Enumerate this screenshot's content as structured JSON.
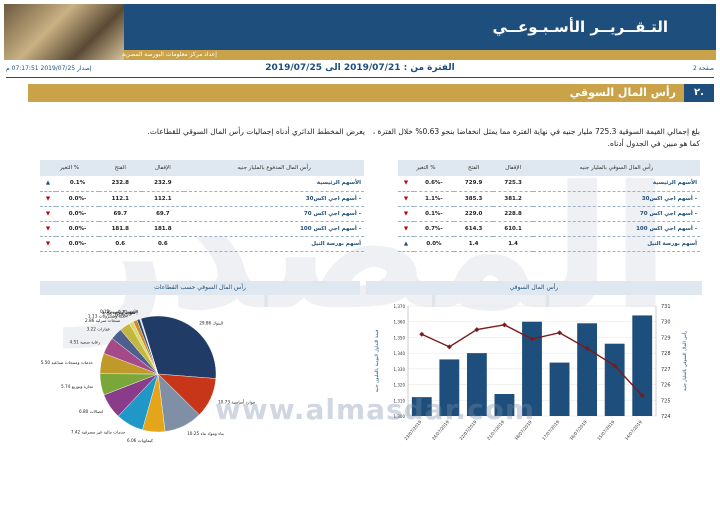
{
  "header": {
    "title": "التـقــريــر الأسـبـوعــي",
    "producer": "إعداد مركز معلومات البورصة المصرية"
  },
  "meta": {
    "issue": "إصدار 2019/07/25 07:17:51 م",
    "period": "الفترة من : 2019/07/21 الى 2019/07/25",
    "page": "صفحة 2"
  },
  "section": {
    "number": "٢.",
    "title": "رأس المال السوقي"
  },
  "paragraphs": {
    "right": "بلغ إجمالي القيمة السوقية 725.3 مليار جنيه في نهاية الفترة مما يمثل انخفاضا بنحو 0.63% خلال الفترة ، كما هو مبين في الجدول أدناه.",
    "left": "يعرض المخطط الدائري أدناه إجماليات رأس المال السوقي للقطاعات."
  },
  "table_right": {
    "headers": [
      "رأس المال السوقي بالمليار جنيه",
      "الإقفال",
      "الفتح",
      "% التغير"
    ],
    "rows": [
      {
        "name": "الأسهم الرئيسية",
        "close": "725.3",
        "open": "729.9",
        "change": "-0.6%",
        "dir": "down"
      },
      {
        "name": "- أسهم اجي اكس30",
        "close": "381.2",
        "open": "385.3",
        "change": "-1.1%",
        "dir": "down"
      },
      {
        "name": "- أسهم اجي اكس 70",
        "close": "228.8",
        "open": "229.0",
        "change": "-0.1%",
        "dir": "down"
      },
      {
        "name": "- أسهم اجي اكس 100",
        "close": "610.1",
        "open": "614.3",
        "change": "-0.7%",
        "dir": "down"
      },
      {
        "name": "أسهم بورصة النيل",
        "close": "1.4",
        "open": "1.4",
        "change": "0.0%",
        "dir": "up"
      }
    ]
  },
  "table_left": {
    "headers": [
      "رأس المال المدفوع بالمليار جنيه",
      "الإقفال",
      "الفتح",
      "% التغير"
    ],
    "rows": [
      {
        "name": "الأسهم الرئيسية",
        "close": "232.9",
        "open": "232.8",
        "change": "0.1%",
        "dir": "up"
      },
      {
        "name": "- أسهم اجي اكس30",
        "close": "112.1",
        "open": "112.1",
        "change": "-0.0%",
        "dir": "down"
      },
      {
        "name": "- أسهم اجي اكس 70",
        "close": "69.7",
        "open": "69.7",
        "change": "-0.0%",
        "dir": "down"
      },
      {
        "name": "- أسهم اجي اكس 100",
        "close": "181.8",
        "open": "181.8",
        "change": "-0.0%",
        "dir": "down"
      },
      {
        "name": "أسهم بورصة النيل",
        "close": "0.6",
        "open": "0.6",
        "change": "-0.0%",
        "dir": "down"
      }
    ]
  },
  "charts": {
    "right_title": "رأس المال السوقي",
    "left_title": "رأس المال السوقي حسب القطاعات"
  },
  "watermark": {
    "site": "www.almasdar.com",
    "big": "المصدر"
  },
  "colors": {
    "navy": "#1e4f7c",
    "gold": "#c9a24a",
    "red": "#c00000"
  },
  "chart_data": [
    {
      "type": "bar",
      "categories": [
        "23/07/2019",
        "24/07/2019",
        "22/07/2019",
        "21/07/2019",
        "18/07/2019",
        "17/07/2019",
        "16/07/2019",
        "15/07/2019",
        "14/07/2019"
      ],
      "series": [
        {
          "type": "bar",
          "values": [
            1312,
            1336,
            1340,
            1314,
            1360,
            1334,
            1359,
            1346,
            1364
          ]
        },
        {
          "type": "line",
          "axis": "right",
          "values": [
            729.2,
            728.4,
            729.5,
            729.8,
            728.9,
            729.3,
            728.3,
            727.2,
            725.3
          ]
        }
      ],
      "ylim_left": [
        1300,
        1370
      ],
      "yticks_left": [
        "1,300",
        "1,310",
        "1,320",
        "1,330",
        "1,340",
        "1,350",
        "1,360",
        "1,370"
      ],
      "ylim_right": [
        724,
        731
      ],
      "yticks_right": [
        "724",
        "725",
        "726",
        "727",
        "728",
        "729",
        "730",
        "731"
      ],
      "ylabel_left": "قيمة التداول اليومية بالمليون جنيه",
      "ylabel_right": "رأس المال السوقي بالمليار جنيه"
    },
    {
      "type": "pie",
      "labels": [
        "البنوك",
        "موارد أساسية",
        "بناء ومواد بناء",
        "كيماويات",
        "خدمات مالية غير مصرفية",
        "اتصالات",
        "تجارة وتوزيع",
        "خدمات ومنتجات صناعية",
        "رعاية صحية",
        "عقارات",
        "منتجات منزلية",
        "أغذية ومشروبات",
        "غاز وبترول",
        "سياحة وترفيه",
        "إعلام",
        "الأسهم الرئيسية"
      ],
      "values": [
        29.86,
        10.73,
        10.25,
        6.06,
        7.42,
        6.8,
        5.74,
        5.5,
        4.51,
        3.22,
        2.86,
        1.13,
        1.08,
        0.75,
        0.21,
        0.13
      ],
      "value_labels": [
        "29.86",
        "10.73",
        "10.25",
        "6.06",
        "7.42",
        "6.80",
        "5.74",
        "5.50",
        "4.51",
        "3.22",
        "2.86",
        "1.13",
        "1.08",
        "0.75",
        "0.21",
        "0.13"
      ],
      "colors": [
        "#1f3b66",
        "#c8361a",
        "#7f8fa6",
        "#e5a51a",
        "#1f97c7",
        "#8a3c8a",
        "#7aa63a",
        "#bf9a2a",
        "#a44a88",
        "#4c5f8d",
        "#c4b73f",
        "#d9d96a",
        "#d08a2c",
        "#2e4a70",
        "#a8b7c8",
        "#51a0c8"
      ]
    }
  ]
}
